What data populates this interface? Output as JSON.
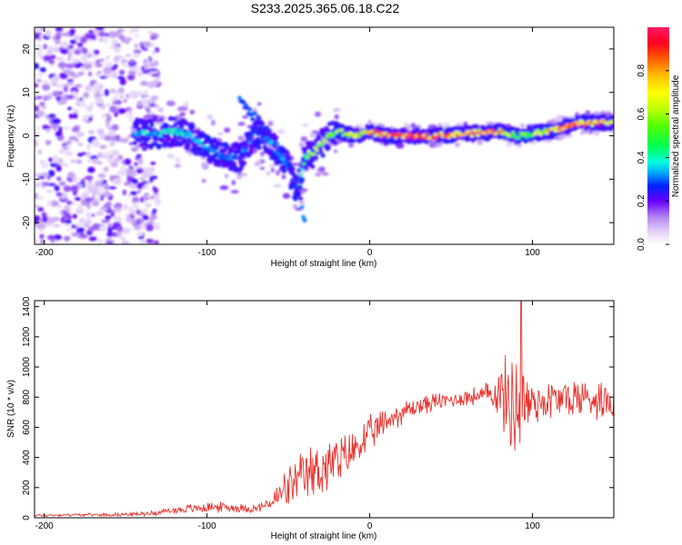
{
  "title": "S233.2025.365.06.18.C22",
  "chart_data": [
    {
      "type": "heatmap",
      "name": "spectrogram",
      "xlabel": "Height of straight line (km)",
      "ylabel": "Frequency (Hz)",
      "xlim": [
        -206,
        150
      ],
      "ylim": [
        -25,
        25
      ],
      "xticks": [
        -200,
        -100,
        0,
        100
      ],
      "yticks": [
        -20,
        -10,
        0,
        10,
        20
      ],
      "colorbar": {
        "label": "Normalized spectral amplitude",
        "range": [
          0,
          1
        ],
        "ticks": [
          "0.0",
          "0.2",
          "0.4",
          "0.6",
          "0.8"
        ],
        "tick_values": [
          0,
          0.2,
          0.4,
          0.6,
          0.8
        ]
      },
      "ridge": {
        "x": [
          -145,
          -130,
          -120,
          -110,
          -100,
          -90,
          -80,
          -70,
          -60,
          -50,
          -45,
          -40,
          -35,
          -30,
          -25,
          -20,
          -10,
          0,
          10,
          20,
          40,
          60,
          80,
          90,
          100,
          110,
          120,
          130,
          140,
          150
        ],
        "freq": [
          0.5,
          0.5,
          1,
          0,
          -3,
          -5,
          -5,
          1,
          -2,
          -7,
          -13,
          -5,
          -4,
          -2,
          0,
          1,
          0,
          1,
          0,
          0,
          0,
          0.5,
          1,
          0,
          0.5,
          1,
          2,
          3,
          3,
          3
        ],
        "amp": [
          0.35,
          0.4,
          0.45,
          0.4,
          0.35,
          0.3,
          0.3,
          0.3,
          0.35,
          0.3,
          0.25,
          0.5,
          0.7,
          0.6,
          0.6,
          0.6,
          0.7,
          0.8,
          0.9,
          0.95,
          0.9,
          0.85,
          0.8,
          0.5,
          0.6,
          0.8,
          0.95,
          0.9,
          0.85,
          0.8
        ]
      },
      "secondary_ridge": {
        "x": [
          -80,
          -70,
          -60,
          -50,
          -45,
          -40
        ],
        "freq": [
          8,
          4,
          0,
          -6,
          -10,
          -20
        ]
      },
      "noise_region": {
        "x_range": [
          -206,
          -130
        ],
        "freq_range": [
          -25,
          25
        ]
      }
    },
    {
      "type": "line",
      "name": "snr",
      "xlabel": "Height of straight line (km)",
      "ylabel": "SNR (10 * v/v)",
      "xlim": [
        -206,
        150
      ],
      "ylim": [
        0,
        1440
      ],
      "xticks": [
        -200,
        -100,
        0,
        100
      ],
      "yticks": [
        0,
        200,
        400,
        600,
        800,
        1000,
        1200,
        1400
      ],
      "color": "#e8322d",
      "series": [
        {
          "name": "SNR",
          "x": [
            -206,
            -180,
            -160,
            -140,
            -130,
            -120,
            -100,
            -90,
            -80,
            -70,
            -60,
            -55,
            -50,
            -45,
            -40,
            -35,
            -30,
            -25,
            -20,
            -15,
            -10,
            -5,
            0,
            5,
            10,
            20,
            30,
            40,
            50,
            60,
            70,
            75,
            80,
            85,
            90,
            93,
            95,
            100,
            110,
            120,
            130,
            140,
            150
          ],
          "baseline": [
            15,
            20,
            20,
            25,
            35,
            50,
            70,
            70,
            65,
            60,
            100,
            150,
            200,
            230,
            270,
            300,
            330,
            350,
            360,
            400,
            450,
            500,
            550,
            590,
            640,
            700,
            740,
            770,
            780,
            800,
            810,
            830,
            820,
            780,
            750,
            740,
            750,
            770,
            780,
            790,
            800,
            790,
            780
          ],
          "spread": [
            10,
            10,
            12,
            15,
            20,
            30,
            40,
            40,
            35,
            30,
            60,
            140,
            160,
            180,
            200,
            220,
            240,
            220,
            200,
            180,
            160,
            150,
            140,
            120,
            110,
            90,
            80,
            70,
            60,
            70,
            80,
            120,
            220,
            350,
            450,
            450,
            350,
            180,
            160,
            160,
            160,
            150,
            150
          ]
        }
      ],
      "peak": {
        "x": 93,
        "y": 1440
      }
    }
  ]
}
